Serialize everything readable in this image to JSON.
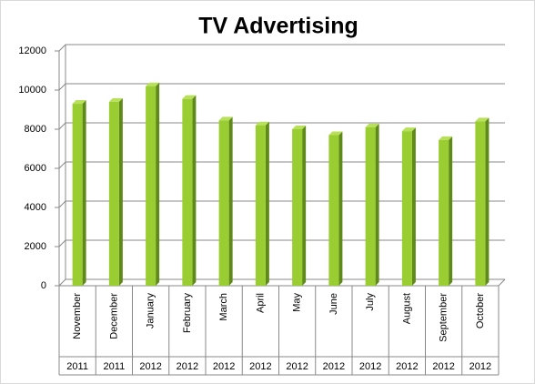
{
  "chart_data": {
    "type": "bar",
    "title": "TV Advertising",
    "categories": [
      "November",
      "December",
      "January",
      "February",
      "March",
      "April",
      "May",
      "June",
      "July",
      "August",
      "September",
      "October"
    ],
    "category_groups": [
      "2011",
      "2011",
      "2012",
      "2012",
      "2012",
      "2012",
      "2012",
      "2012",
      "2012",
      "2012",
      "2012",
      "2012"
    ],
    "values": [
      9300,
      9400,
      10200,
      9550,
      8450,
      8200,
      8000,
      7700,
      8100,
      7900,
      7450,
      8400
    ],
    "color": "#9acd32",
    "ylim": [
      0,
      12000
    ],
    "yticks": [
      0,
      2000,
      4000,
      6000,
      8000,
      10000,
      12000
    ],
    "grid": true
  }
}
